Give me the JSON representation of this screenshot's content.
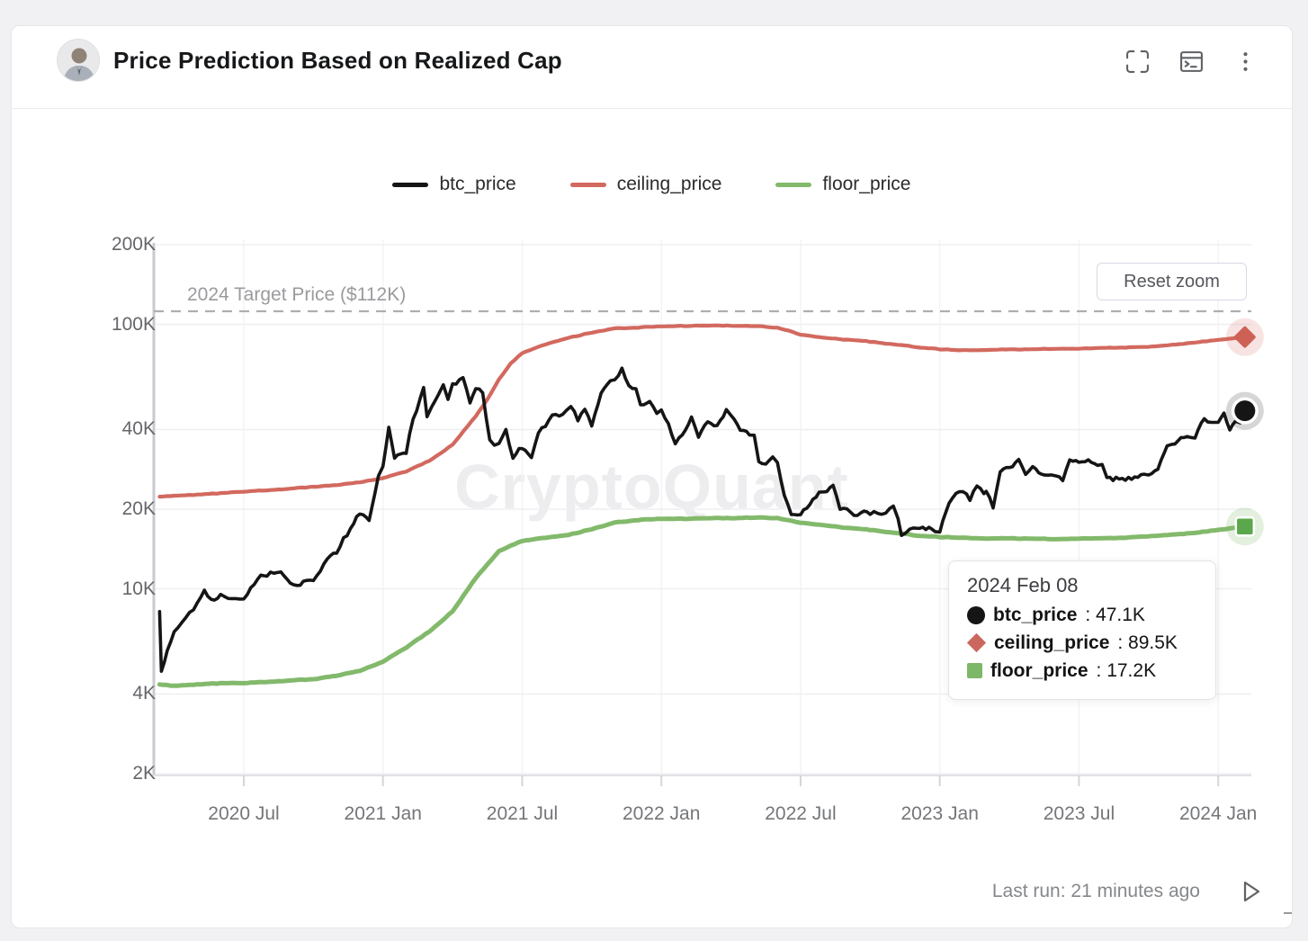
{
  "page": {
    "bg": "#f1f1f4",
    "card_bg": "#ffffff",
    "card_border": "#e7e7ea"
  },
  "header": {
    "title": "Price Prediction Based on Realized Cap",
    "icons": [
      "fullscreen-icon",
      "terminal-icon",
      "kebab-menu-icon"
    ]
  },
  "legend": [
    {
      "label": "btc_price",
      "color": "#151515"
    },
    {
      "label": "ceiling_price",
      "color": "#d2695f"
    },
    {
      "label": "floor_price",
      "color": "#82b96b"
    }
  ],
  "reset_button": {
    "label": "Reset zoom"
  },
  "watermark": "CryptoQuant",
  "tooltip": {
    "date": "2024 Feb 08",
    "rows": [
      {
        "label": "btc_price",
        "value": "47.1K",
        "marker": "circle",
        "color": "#151515"
      },
      {
        "label": "ceiling_price",
        "value": "89.5K",
        "marker": "diamond",
        "color": "#cb685e"
      },
      {
        "label": "floor_price",
        "value": "17.2K",
        "marker": "square",
        "color": "#7cb868"
      }
    ]
  },
  "footer": {
    "last_run": "Last run: 21 minutes ago"
  },
  "chart_data": {
    "type": "line",
    "title": "Price Prediction Based on Realized Cap",
    "x_unit": "months since 2020-03-01 (t=4 equals 2020-07-01)",
    "y_unit": "USD thousands",
    "y_scale": "log",
    "ylim": [
      2,
      200
    ],
    "grid": true,
    "legend_position": "top",
    "y_ticks": [
      {
        "label": "200K",
        "value": 200
      },
      {
        "label": "100K",
        "value": 100
      },
      {
        "label": "40K",
        "value": 40
      },
      {
        "label": "20K",
        "value": 20
      },
      {
        "label": "10K",
        "value": 10
      },
      {
        "label": "4K",
        "value": 4
      },
      {
        "label": "2K",
        "value": 2
      }
    ],
    "x_ticks": [
      {
        "label": "2020 Jul",
        "t": 4
      },
      {
        "label": "2021 Jan",
        "t": 10
      },
      {
        "label": "2021 Jul",
        "t": 16
      },
      {
        "label": "2022 Jan",
        "t": 22
      },
      {
        "label": "2022 Jul",
        "t": 28
      },
      {
        "label": "2023 Jan",
        "t": 34
      },
      {
        "label": "2023 Jul",
        "t": 40
      },
      {
        "label": "2024 Jan",
        "t": 46
      }
    ],
    "target_line": {
      "label": "2024 Target Price ($112K)",
      "value": 112
    },
    "last_point": {
      "date": "2024 Feb 08",
      "btc_price": 47.1,
      "ceiling_price": 89.5,
      "floor_price": 17.2
    },
    "series": [
      {
        "name": "ceiling_price",
        "color": "#d2695f",
        "width": 4.2,
        "jitter_pct": 0.35,
        "points": [
          [
            0.37,
            22.3
          ],
          [
            1,
            22.5
          ],
          [
            2,
            22.7
          ],
          [
            3,
            23.0
          ],
          [
            4,
            23.3
          ],
          [
            5,
            23.6
          ],
          [
            6,
            23.9
          ],
          [
            7,
            24.3
          ],
          [
            8,
            24.7
          ],
          [
            9,
            25.3
          ],
          [
            10,
            26.2
          ],
          [
            11,
            27.8
          ],
          [
            12,
            30.5
          ],
          [
            13,
            35.0
          ],
          [
            14,
            45.0
          ],
          [
            14.5,
            52.0
          ],
          [
            15,
            62.0
          ],
          [
            15.5,
            71.0
          ],
          [
            16,
            78.0
          ],
          [
            17,
            84.0
          ],
          [
            18,
            89.0
          ],
          [
            19,
            93.0
          ],
          [
            20,
            96.5
          ],
          [
            21,
            97.2
          ],
          [
            22,
            98.3
          ],
          [
            23,
            98.6
          ],
          [
            24,
            99.0
          ],
          [
            25,
            98.8
          ],
          [
            26,
            98.6
          ],
          [
            27,
            97.0
          ],
          [
            27.5,
            94.5
          ],
          [
            28,
            91.5
          ],
          [
            29,
            89.0
          ],
          [
            30,
            87.5
          ],
          [
            31,
            86.0
          ],
          [
            32,
            84.0
          ],
          [
            33,
            82.0
          ],
          [
            34,
            80.5
          ],
          [
            35,
            79.8
          ],
          [
            36,
            80.0
          ],
          [
            37,
            80.3
          ],
          [
            38,
            80.6
          ],
          [
            39,
            80.8
          ],
          [
            40,
            81.0
          ],
          [
            41,
            81.3
          ],
          [
            42,
            81.7
          ],
          [
            43,
            82.2
          ],
          [
            44,
            83.5
          ],
          [
            45,
            85.5
          ],
          [
            46,
            87.3
          ],
          [
            47.15,
            89.5
          ]
        ]
      },
      {
        "name": "floor_price",
        "color": "#82b96b",
        "width": 5,
        "jitter_pct": 0.35,
        "points": [
          [
            0.37,
            4.35
          ],
          [
            1,
            4.3
          ],
          [
            2,
            4.35
          ],
          [
            3,
            4.4
          ],
          [
            4,
            4.4
          ],
          [
            5,
            4.45
          ],
          [
            6,
            4.5
          ],
          [
            7,
            4.55
          ],
          [
            8,
            4.7
          ],
          [
            9,
            4.9
          ],
          [
            10,
            5.3
          ],
          [
            11,
            6.0
          ],
          [
            12,
            6.9
          ],
          [
            13,
            8.2
          ],
          [
            14,
            11.0
          ],
          [
            15,
            13.9
          ],
          [
            16,
            15.2
          ],
          [
            17,
            15.6
          ],
          [
            18,
            16.0
          ],
          [
            19,
            16.8
          ],
          [
            20,
            17.8
          ],
          [
            21,
            18.2
          ],
          [
            22,
            18.4
          ],
          [
            23,
            18.4
          ],
          [
            24,
            18.5
          ],
          [
            25,
            18.5
          ],
          [
            26,
            18.6
          ],
          [
            27,
            18.5
          ],
          [
            28,
            17.8
          ],
          [
            29,
            17.4
          ],
          [
            30,
            17.0
          ],
          [
            31,
            16.7
          ],
          [
            32,
            16.3
          ],
          [
            33,
            15.9
          ],
          [
            34,
            15.7
          ],
          [
            35,
            15.6
          ],
          [
            36,
            15.5
          ],
          [
            37,
            15.5
          ],
          [
            38,
            15.5
          ],
          [
            39,
            15.4
          ],
          [
            40,
            15.5
          ],
          [
            41,
            15.5
          ],
          [
            42,
            15.6
          ],
          [
            43,
            15.8
          ],
          [
            44,
            16.0
          ],
          [
            45,
            16.3
          ],
          [
            46,
            16.7
          ],
          [
            47.15,
            17.2
          ]
        ]
      },
      {
        "name": "btc_price",
        "color": "#151515",
        "width": 3.6,
        "jitter_pct": 2.1,
        "points": [
          [
            0.37,
            8.2
          ],
          [
            0.45,
            4.8
          ],
          [
            0.7,
            5.9
          ],
          [
            1.0,
            6.9
          ],
          [
            1.5,
            7.8
          ],
          [
            2.0,
            8.8
          ],
          [
            2.3,
            9.8
          ],
          [
            2.6,
            9.0
          ],
          [
            3.0,
            9.5
          ],
          [
            3.5,
            9.1
          ],
          [
            4.0,
            9.2
          ],
          [
            4.6,
            11.0
          ],
          [
            5.0,
            11.3
          ],
          [
            5.6,
            11.7
          ],
          [
            6.0,
            10.5
          ],
          [
            6.3,
            10.2
          ],
          [
            6.7,
            10.7
          ],
          [
            7.0,
            10.7
          ],
          [
            7.6,
            13.0
          ],
          [
            8.0,
            13.8
          ],
          [
            8.6,
            17.0
          ],
          [
            9.0,
            19.4
          ],
          [
            9.4,
            18.3
          ],
          [
            9.8,
            26.5
          ],
          [
            10.0,
            29.0
          ],
          [
            10.25,
            40.5
          ],
          [
            10.5,
            31.0
          ],
          [
            10.75,
            32.5
          ],
          [
            11.0,
            33.1
          ],
          [
            11.3,
            44.0
          ],
          [
            11.6,
            52.0
          ],
          [
            11.75,
            57.4
          ],
          [
            11.9,
            45.2
          ],
          [
            12.1,
            49.6
          ],
          [
            12.4,
            54.0
          ],
          [
            12.6,
            58.8
          ],
          [
            12.8,
            51.5
          ],
          [
            13.0,
            58.9
          ],
          [
            13.45,
            63.5
          ],
          [
            13.75,
            50.0
          ],
          [
            14.0,
            57.8
          ],
          [
            14.3,
            55.0
          ],
          [
            14.6,
            36.7
          ],
          [
            14.8,
            34.5
          ],
          [
            15.0,
            35.6
          ],
          [
            15.3,
            39.5
          ],
          [
            15.6,
            31.6
          ],
          [
            16.0,
            34.5
          ],
          [
            16.4,
            31.5
          ],
          [
            16.7,
            38.5
          ],
          [
            17.0,
            41.5
          ],
          [
            17.3,
            45.5
          ],
          [
            17.6,
            44.7
          ],
          [
            17.9,
            47.0
          ],
          [
            18.1,
            48.9
          ],
          [
            18.4,
            43.8
          ],
          [
            18.7,
            47.7
          ],
          [
            19.0,
            41.5
          ],
          [
            19.4,
            54.7
          ],
          [
            19.8,
            61.3
          ],
          [
            20.0,
            61.3
          ],
          [
            20.3,
            67.5
          ],
          [
            20.6,
            58.7
          ],
          [
            20.9,
            57.2
          ],
          [
            21.1,
            49.2
          ],
          [
            21.5,
            50.8
          ],
          [
            21.8,
            46.2
          ],
          [
            22.0,
            47.7
          ],
          [
            22.3,
            41.8
          ],
          [
            22.6,
            35.1
          ],
          [
            22.9,
            38.5
          ],
          [
            23.3,
            44.4
          ],
          [
            23.6,
            37.7
          ],
          [
            24.0,
            43.2
          ],
          [
            24.4,
            41.0
          ],
          [
            24.8,
            47.1
          ],
          [
            25.0,
            45.5
          ],
          [
            25.4,
            40.0
          ],
          [
            25.8,
            38.6
          ],
          [
            26.0,
            38.5
          ],
          [
            26.2,
            30.1
          ],
          [
            26.5,
            29.5
          ],
          [
            26.8,
            31.7
          ],
          [
            27.0,
            29.8
          ],
          [
            27.3,
            22.5
          ],
          [
            27.6,
            19.0
          ],
          [
            28.0,
            19.3
          ],
          [
            28.4,
            20.8
          ],
          [
            28.8,
            23.3
          ],
          [
            29.0,
            23.3
          ],
          [
            29.4,
            24.4
          ],
          [
            29.7,
            20.0
          ],
          [
            30.0,
            20.0
          ],
          [
            30.3,
            18.8
          ],
          [
            30.6,
            19.6
          ],
          [
            31.0,
            19.4
          ],
          [
            31.5,
            19.2
          ],
          [
            32.0,
            20.5
          ],
          [
            32.2,
            18.3
          ],
          [
            32.35,
            15.9
          ],
          [
            32.7,
            16.9
          ],
          [
            33.0,
            17.1
          ],
          [
            33.4,
            16.9
          ],
          [
            33.8,
            16.5
          ],
          [
            34.0,
            16.6
          ],
          [
            34.4,
            21.0
          ],
          [
            34.7,
            23.1
          ],
          [
            35.0,
            23.1
          ],
          [
            35.3,
            21.8
          ],
          [
            35.6,
            24.6
          ],
          [
            35.9,
            23.2
          ],
          [
            36.0,
            23.5
          ],
          [
            36.3,
            20.2
          ],
          [
            36.6,
            28.0
          ],
          [
            37.0,
            28.5
          ],
          [
            37.4,
            30.4
          ],
          [
            37.7,
            27.3
          ],
          [
            38.0,
            29.2
          ],
          [
            38.4,
            26.9
          ],
          [
            38.8,
            27.2
          ],
          [
            39.0,
            26.8
          ],
          [
            39.3,
            25.6
          ],
          [
            39.6,
            30.5
          ],
          [
            40.0,
            30.5
          ],
          [
            40.4,
            30.3
          ],
          [
            40.8,
            29.2
          ],
          [
            41.0,
            29.2
          ],
          [
            41.2,
            26.0
          ],
          [
            41.6,
            26.1
          ],
          [
            42.0,
            25.9
          ],
          [
            42.4,
            26.6
          ],
          [
            42.8,
            27.0
          ],
          [
            43.0,
            27.0
          ],
          [
            43.4,
            28.5
          ],
          [
            43.8,
            34.5
          ],
          [
            44.0,
            34.7
          ],
          [
            44.4,
            37.3
          ],
          [
            44.8,
            37.7
          ],
          [
            45.0,
            37.7
          ],
          [
            45.4,
            43.8
          ],
          [
            45.7,
            42.3
          ],
          [
            46.0,
            42.6
          ],
          [
            46.25,
            46.7
          ],
          [
            46.5,
            40.0
          ],
          [
            46.75,
            42.9
          ],
          [
            46.95,
            43.0
          ],
          [
            47.15,
            47.1
          ]
        ]
      }
    ],
    "end_markers": [
      {
        "series": "ceiling_price",
        "shape": "diamond",
        "value": 89.5,
        "color": "#ce6155",
        "halo": "rgba(210,105,95,0.18)"
      },
      {
        "series": "btc_price",
        "shape": "circle",
        "value": 47.1,
        "color": "#151515",
        "halo": "rgba(0,0,0,0.16)"
      },
      {
        "series": "floor_price",
        "shape": "square",
        "value": 17.2,
        "color": "#5ba74b",
        "halo": "rgba(130,185,107,0.22)"
      }
    ]
  }
}
